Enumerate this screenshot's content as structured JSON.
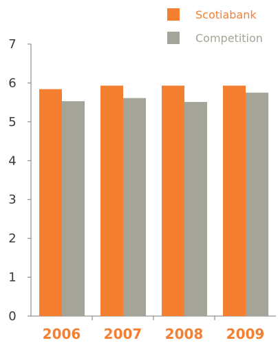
{
  "chart_data": {
    "type": "bar",
    "categories": [
      "2006",
      "2007",
      "2008",
      "2009"
    ],
    "series": [
      {
        "name": "Scotiabank",
        "color": "#f47f31",
        "values": [
          5.84,
          5.93,
          5.93,
          5.93
        ]
      },
      {
        "name": "Competition",
        "color": "#a5a498",
        "values": [
          5.53,
          5.61,
          5.51,
          5.75
        ]
      }
    ],
    "ylim": [
      0,
      7
    ],
    "yticks": [
      0,
      1,
      2,
      3,
      4,
      5,
      6,
      7
    ],
    "legend_position": "top-right",
    "grid": false
  }
}
